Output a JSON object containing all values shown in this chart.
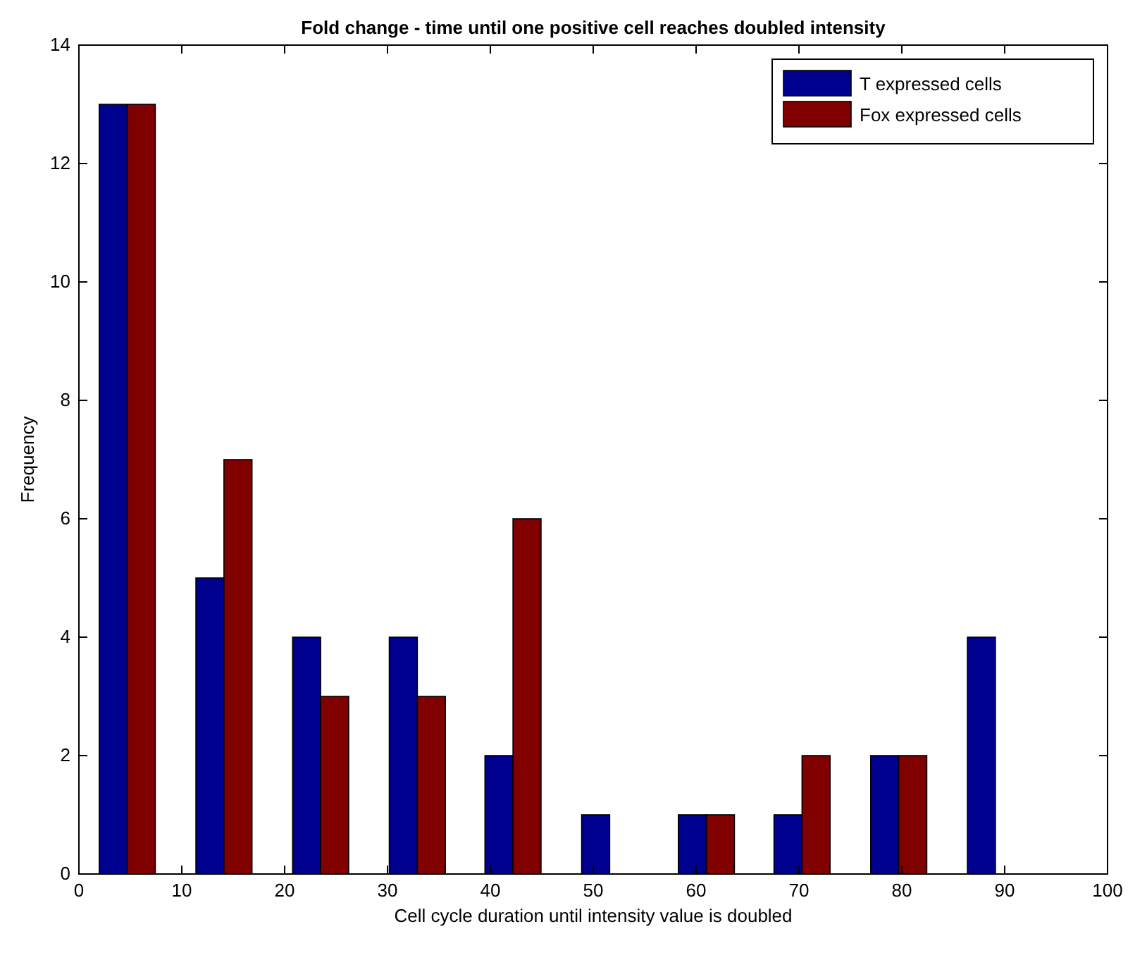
{
  "chart_data": {
    "type": "bar",
    "title": "Fold change - time until one positive cell reaches doubled intensity",
    "xlabel": "Cell cycle duration until intensity value is doubled",
    "ylabel": "Frequency",
    "x": [
      4.7,
      14.1,
      23.5,
      32.9,
      42.2,
      51.6,
      61.0,
      70.3,
      79.7,
      89.1
    ],
    "series": [
      {
        "name": "T expressed cells",
        "color": "#00008f",
        "values": [
          13,
          5,
          4,
          4,
          2,
          1,
          1,
          1,
          2,
          4
        ]
      },
      {
        "name": "Fox expressed cells",
        "color": "#800000",
        "values": [
          13,
          7,
          3,
          3,
          6,
          0,
          1,
          2,
          2,
          0
        ]
      }
    ],
    "xlim": [
      0,
      100
    ],
    "xticks": [
      0,
      10,
      20,
      30,
      40,
      50,
      60,
      70,
      80,
      90,
      100
    ],
    "ylim": [
      0,
      14
    ],
    "yticks": [
      0,
      2,
      4,
      6,
      8,
      10,
      12,
      14
    ],
    "grid": false,
    "legend": "top right"
  }
}
